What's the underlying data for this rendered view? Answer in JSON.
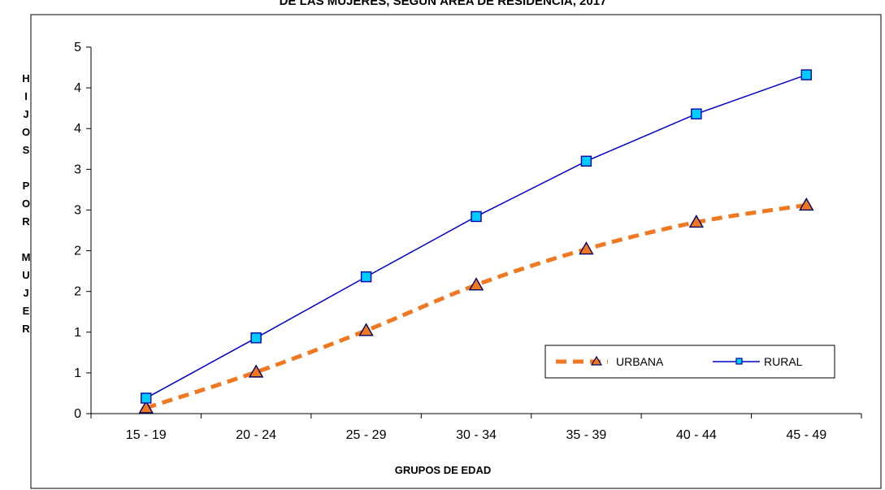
{
  "chart_data": {
    "type": "line",
    "title": "DE LAS MUJERES, SEGÚN ÁREA DE RESIDENCIA, 2017",
    "xlabel": "GRUPOS DE EDAD",
    "ylabel_letters": [
      "H",
      "I",
      "J",
      "O",
      "S",
      "",
      "P",
      "O",
      "R",
      "",
      "M",
      "U",
      "J",
      "E",
      "R"
    ],
    "categories": [
      "15 - 19",
      "20 - 24",
      "25 - 29",
      "30 - 34",
      "35 - 39",
      "40 - 44",
      "45 - 49"
    ],
    "ylim": [
      0,
      4.5
    ],
    "yticks": [
      0,
      0.5,
      1,
      1.5,
      2,
      2.5,
      3,
      3.5,
      4,
      4.5
    ],
    "ytick_labels": [
      "0",
      "1",
      "1",
      "2",
      "2",
      "3",
      "3",
      "4",
      "4",
      "5"
    ],
    "series": [
      {
        "name": "URBANA",
        "values": [
          0.07,
          0.51,
          1.02,
          1.58,
          2.02,
          2.35,
          2.56
        ],
        "color": "#f07820",
        "marker": "triangle",
        "style": "dashed"
      },
      {
        "name": "RURAL",
        "values": [
          0.19,
          0.93,
          1.68,
          2.42,
          3.1,
          3.68,
          4.16
        ],
        "color": "#0000cc",
        "marker": "square",
        "style": "solid"
      }
    ],
    "grid": false,
    "legend_position": "bottom-right"
  }
}
